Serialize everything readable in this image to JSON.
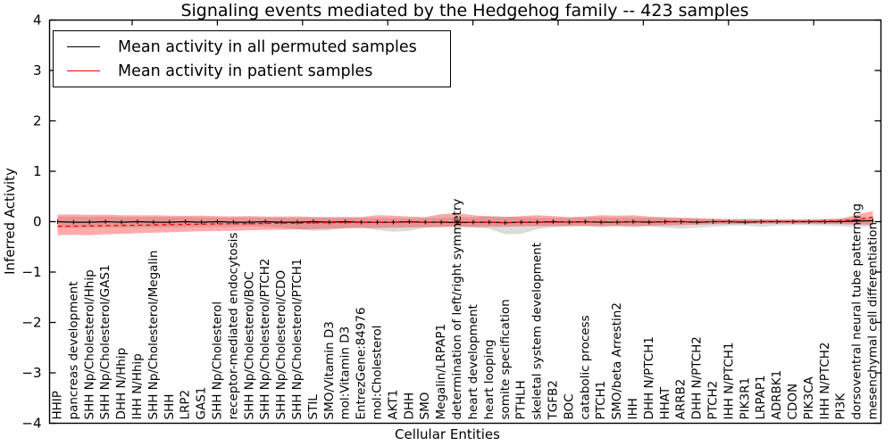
{
  "chart_data": {
    "type": "line",
    "title": "Signaling events mediated by the Hedgehog family -- 423 samples",
    "xlabel": "Cellular Entities",
    "ylabel": "Inferred Activity",
    "ylim": [
      -4,
      4
    ],
    "grid": false,
    "legend_position": "upper left",
    "y_ticks": {
      "values": [
        4,
        3,
        2,
        1,
        0,
        -1,
        -2,
        -3,
        -4
      ],
      "labels": [
        "4",
        "3",
        "2",
        "1",
        "0",
        "−1",
        "−2",
        "−3",
        "−4"
      ]
    },
    "categories": [
      "HHIP",
      "pancreas development",
      "SHH Np/Cholesterol/Hhip",
      "SHH Np/Cholesterol/GAS1",
      "DHH N/Hhip",
      "IHH N/Hhip",
      "SHH Np/Cholesterol/Megalin",
      "SHH",
      "LRP2",
      "GAS1",
      "SHH Np/Cholesterol",
      "receptor-mediated endocytosis",
      "SHH Np/Cholesterol/BOC",
      "SHH Np/Cholesterol/PTCH2",
      "SHH Np/Cholesterol/CDO",
      "SHH Np/Cholesterol/PTCH1",
      "STIL",
      "SMO/Vitamin D3",
      "mol:Vitamin D3",
      "EntrezGene:84976",
      "mol:Cholesterol",
      "AKT1",
      "DHH",
      "SMO",
      "Megalin/LRPAP1",
      "determination of left/right symmetry",
      "heart development",
      "heart looping",
      "somite specification",
      "PTHLH",
      "skeletal system development",
      "TGFB2",
      "BOC",
      "catabolic process",
      "PTCH1",
      "SMO/beta Arrestin2",
      "IHH",
      "DHH N/PTCH1",
      "HHAT",
      "ARRB2",
      "DHH N/PTCH2",
      "PTCH2",
      "IHH N/PTCH1",
      "PIK3R1",
      "LRPAP1",
      "ADRBK1",
      "CDON",
      "PIK3CA",
      "IHH N/PTCH2",
      "PI3K",
      "dorsoventral neural tube patterning",
      "mesenchymal cell differentiation"
    ],
    "series": [
      {
        "name": "Mean activity in all permuted samples",
        "color": "#000000",
        "band_opacity": 0.14,
        "values": [
          0,
          -0.01,
          -0.01,
          0,
          -0.01,
          0,
          -0.01,
          -0.01,
          0,
          -0.01,
          0,
          -0.01,
          -0.01,
          0,
          -0.01,
          -0.01,
          0,
          -0.01,
          0,
          -0.01,
          -0.01,
          -0.01,
          0,
          -0.01,
          -0.01,
          -0.02,
          -0.01,
          -0.01,
          -0.02,
          -0.01,
          -0.01,
          0,
          -0.01,
          0,
          -0.01,
          -0.01,
          0,
          -0.01,
          0,
          0,
          -0.01,
          0,
          0,
          -0.01,
          0,
          0,
          0,
          0,
          0,
          0,
          0.01,
          0.02
        ],
        "band_upper": [
          0.1,
          0.1,
          0.095,
          0.1,
          0.095,
          0.09,
          0.095,
          0.09,
          0.09,
          0.085,
          0.085,
          0.08,
          0.085,
          0.08,
          0.08,
          0.075,
          0.08,
          0.075,
          0.07,
          0.075,
          0.07,
          0.07,
          0.065,
          0.07,
          0.08,
          0.09,
          0.085,
          0.12,
          0.1,
          0.09,
          0.08,
          0.075,
          0.07,
          0.08,
          0.09,
          0.08,
          0.085,
          0.08,
          0.07,
          0.065,
          0.06,
          0.055,
          0.05,
          0.055,
          0.06,
          0.05,
          0.05,
          0.05,
          0.055,
          0.06,
          0.08,
          0.09
        ],
        "band_lower": [
          -0.12,
          -0.125,
          -0.12,
          -0.115,
          -0.12,
          -0.11,
          -0.115,
          -0.11,
          -0.105,
          -0.11,
          -0.1,
          -0.1,
          -0.095,
          -0.1,
          -0.12,
          -0.15,
          -0.18,
          -0.17,
          -0.12,
          -0.11,
          -0.17,
          -0.2,
          -0.18,
          -0.12,
          -0.1,
          -0.1,
          -0.11,
          -0.14,
          -0.25,
          -0.24,
          -0.15,
          -0.11,
          -0.1,
          -0.1,
          -0.11,
          -0.1,
          -0.11,
          -0.1,
          -0.12,
          -0.14,
          -0.12,
          -0.1,
          -0.08,
          -0.08,
          -0.1,
          -0.08,
          -0.07,
          -0.07,
          -0.08,
          -0.09,
          -0.1,
          -0.1
        ]
      },
      {
        "name": "Mean activity in patient samples",
        "color": "#ff0000",
        "band_opacity": 0.33,
        "values": [
          -0.09,
          -0.09,
          -0.085,
          -0.08,
          -0.075,
          -0.07,
          -0.065,
          -0.06,
          -0.055,
          -0.05,
          -0.045,
          -0.04,
          -0.04,
          -0.035,
          -0.03,
          -0.03,
          -0.025,
          -0.02,
          -0.02,
          -0.015,
          -0.015,
          -0.01,
          -0.01,
          -0.01,
          -0.005,
          -0.005,
          -0.01,
          -0.015,
          -0.02,
          -0.015,
          -0.01,
          -0.01,
          -0.005,
          -0.005,
          0,
          -0.005,
          0,
          0,
          -0.005,
          0,
          0,
          0,
          0.005,
          0,
          0,
          0.005,
          0,
          0.005,
          0.01,
          0.02,
          0.04,
          0.09
        ],
        "band_upper": [
          0.14,
          0.145,
          0.135,
          0.14,
          0.13,
          0.125,
          0.13,
          0.12,
          0.115,
          0.12,
          0.11,
          0.105,
          0.11,
          0.1,
          0.1,
          0.105,
          0.095,
          0.09,
          0.095,
          0.09,
          0.13,
          0.12,
          0.1,
          0.09,
          0.15,
          0.17,
          0.13,
          0.1,
          0.09,
          0.11,
          0.13,
          0.11,
          0.09,
          0.1,
          0.13,
          0.12,
          0.13,
          0.1,
          0.09,
          0.08,
          0.07,
          0.06,
          0.05,
          0.05,
          0.04,
          0.04,
          0.04,
          0.04,
          0.05,
          0.06,
          0.14,
          0.21
        ],
        "band_lower": [
          -0.27,
          -0.26,
          -0.27,
          -0.25,
          -0.24,
          -0.23,
          -0.22,
          -0.21,
          -0.2,
          -0.19,
          -0.185,
          -0.18,
          -0.17,
          -0.165,
          -0.16,
          -0.155,
          -0.15,
          -0.14,
          -0.135,
          -0.13,
          -0.125,
          -0.12,
          -0.115,
          -0.11,
          -0.11,
          -0.1,
          -0.11,
          -0.1,
          -0.1,
          -0.095,
          -0.09,
          -0.09,
          -0.085,
          -0.08,
          -0.09,
          -0.08,
          -0.09,
          -0.08,
          -0.075,
          -0.07,
          -0.06,
          -0.05,
          -0.05,
          -0.045,
          -0.04,
          -0.04,
          -0.04,
          -0.04,
          -0.045,
          -0.05,
          -0.06,
          -0.06
        ]
      }
    ]
  }
}
